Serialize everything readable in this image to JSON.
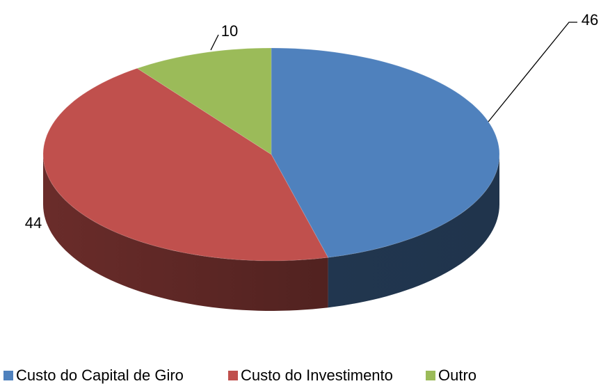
{
  "chart_data": {
    "type": "pie",
    "is_3d": true,
    "categories": [
      "Custo do Capital de Giro",
      "Custo do Investimento",
      "Outro"
    ],
    "values": [
      46,
      44,
      10
    ],
    "colors": [
      "#4f81bd",
      "#c0504d",
      "#9bbb59"
    ],
    "legend": "bottom"
  }
}
